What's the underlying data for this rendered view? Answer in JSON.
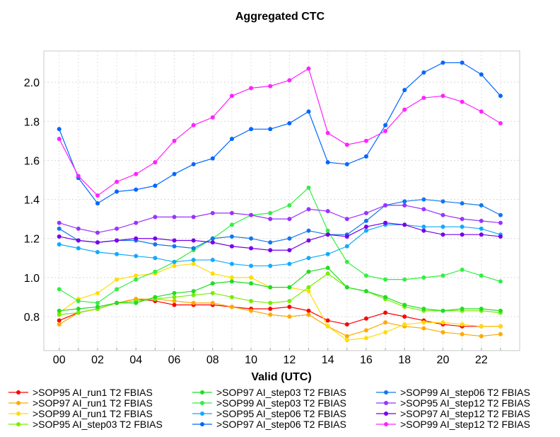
{
  "chart_data": {
    "type": "line",
    "title": "Aggregated CTC",
    "xlabel": "Valid (UTC)",
    "ylabel": "",
    "xlim": [
      -0.8,
      24
    ],
    "ylim": [
      0.626,
      2.16
    ],
    "grid": true,
    "legend_placement": "bottom-center",
    "x": [
      0,
      1,
      2,
      3,
      4,
      5,
      6,
      7,
      8,
      9,
      10,
      11,
      12,
      13,
      14,
      15,
      16,
      17,
      18,
      19,
      20,
      21,
      22,
      23
    ],
    "x_ticks": [
      0,
      2,
      4,
      6,
      8,
      10,
      12,
      14,
      16,
      18,
      20,
      22
    ],
    "x_tick_labels": [
      "00",
      "02",
      "04",
      "06",
      "08",
      "10",
      "12",
      "14",
      "16",
      "18",
      "20",
      "22"
    ],
    "y_ticks": [
      0.8,
      1.0,
      1.2,
      1.4,
      1.6,
      1.8,
      2.0
    ],
    "y_tick_labels": [
      "0.8",
      "1.0",
      "1.2",
      "1.4",
      "1.6",
      "1.8",
      "2.0"
    ],
    "series": [
      {
        "name": ">SOP95 AI_run1 T2 FBIAS",
        "color": "#ff0000",
        "values": [
          0.78,
          0.82,
          0.84,
          0.87,
          0.89,
          0.88,
          0.86,
          0.86,
          0.86,
          0.85,
          0.84,
          0.84,
          0.85,
          0.83,
          0.78,
          0.76,
          0.79,
          0.82,
          0.8,
          0.78,
          0.76,
          0.75,
          0.75,
          0.75
        ]
      },
      {
        "name": ">SOP97 AI_run1 T2 FBIAS",
        "color": "#ffaa00",
        "values": [
          0.76,
          0.82,
          0.84,
          0.87,
          0.89,
          0.89,
          0.88,
          0.87,
          0.87,
          0.85,
          0.83,
          0.81,
          0.8,
          0.81,
          0.75,
          0.7,
          0.73,
          0.77,
          0.75,
          0.74,
          0.72,
          0.71,
          0.7,
          0.71
        ]
      },
      {
        "name": ">SOP99 AI_run1 T2 FBIAS",
        "color": "#ffdd00",
        "values": [
          0.82,
          0.89,
          0.92,
          0.99,
          1.01,
          1.02,
          1.06,
          1.07,
          1.02,
          1.0,
          1.0,
          0.95,
          0.95,
          0.93,
          0.75,
          0.68,
          0.69,
          0.72,
          0.76,
          0.77,
          0.77,
          0.76,
          0.75,
          0.75
        ]
      },
      {
        "name": ">SOP95 AI_step03 T2 FBIAS",
        "color": "#77ee00",
        "values": [
          0.81,
          0.82,
          0.84,
          0.87,
          0.88,
          0.89,
          0.9,
          0.91,
          0.92,
          0.9,
          0.88,
          0.87,
          0.88,
          0.95,
          1.02,
          0.95,
          0.93,
          0.89,
          0.85,
          0.83,
          0.83,
          0.83,
          0.83,
          0.82
        ]
      },
      {
        "name": ">SOP97 AI_step03 T2 FBIAS",
        "color": "#22dd22",
        "values": [
          0.83,
          0.84,
          0.85,
          0.87,
          0.87,
          0.9,
          0.92,
          0.93,
          0.97,
          0.98,
          0.97,
          0.95,
          0.95,
          1.03,
          1.05,
          0.95,
          0.93,
          0.9,
          0.86,
          0.84,
          0.83,
          0.84,
          0.84,
          0.83
        ]
      },
      {
        "name": ">SOP99 AI_step03 T2 FBIAS",
        "color": "#33ee44",
        "values": [
          0.94,
          0.88,
          0.87,
          0.94,
          0.99,
          1.03,
          1.08,
          1.14,
          1.2,
          1.27,
          1.32,
          1.33,
          1.37,
          1.46,
          1.24,
          1.08,
          1.01,
          0.99,
          0.99,
          1.0,
          1.01,
          1.04,
          1.01,
          0.98
        ]
      },
      {
        "name": ">SOP95 AI_step06 T2 FBIAS",
        "color": "#11aaff",
        "values": [
          1.17,
          1.15,
          1.13,
          1.12,
          1.11,
          1.1,
          1.08,
          1.09,
          1.09,
          1.07,
          1.06,
          1.06,
          1.07,
          1.1,
          1.12,
          1.16,
          1.24,
          1.27,
          1.27,
          1.26,
          1.26,
          1.26,
          1.25,
          1.22
        ]
      },
      {
        "name": ">SOP97 AI_step06 T2 FBIAS",
        "color": "#0066ff",
        "values": [
          1.76,
          1.51,
          1.38,
          1.44,
          1.45,
          1.47,
          1.53,
          1.58,
          1.61,
          1.71,
          1.76,
          1.76,
          1.79,
          1.85,
          1.59,
          1.58,
          1.62,
          1.78,
          1.96,
          2.05,
          2.1,
          2.1,
          2.04,
          1.93
        ]
      },
      {
        "name": ">SOP99 AI_step06 T2 FBIAS",
        "color": "#1177ee",
        "values": [
          1.25,
          1.19,
          1.18,
          1.19,
          1.19,
          1.17,
          1.16,
          1.15,
          1.2,
          1.21,
          1.2,
          1.18,
          1.2,
          1.24,
          1.22,
          1.22,
          1.29,
          1.37,
          1.39,
          1.4,
          1.39,
          1.38,
          1.37,
          1.32
        ]
      },
      {
        "name": ">SOP95 AI_step12 T2 FBIAS",
        "color": "#9933ff",
        "values": [
          1.28,
          1.25,
          1.23,
          1.25,
          1.28,
          1.31,
          1.31,
          1.31,
          1.33,
          1.33,
          1.32,
          1.3,
          1.3,
          1.35,
          1.34,
          1.3,
          1.33,
          1.37,
          1.37,
          1.35,
          1.32,
          1.3,
          1.29,
          1.28
        ]
      },
      {
        "name": ">SOP97 AI_step12 T2 FBIAS",
        "color": "#7700ee",
        "values": [
          1.21,
          1.19,
          1.18,
          1.19,
          1.2,
          1.2,
          1.19,
          1.19,
          1.18,
          1.16,
          1.15,
          1.14,
          1.14,
          1.19,
          1.22,
          1.21,
          1.26,
          1.28,
          1.27,
          1.24,
          1.22,
          1.22,
          1.22,
          1.21
        ]
      },
      {
        "name": ">SOP99 AI_step12 T2 FBIAS",
        "color": "#ff22ff",
        "values": [
          1.71,
          1.52,
          1.42,
          1.49,
          1.53,
          1.59,
          1.7,
          1.78,
          1.82,
          1.93,
          1.97,
          1.98,
          2.01,
          2.07,
          1.74,
          1.68,
          1.7,
          1.75,
          1.86,
          1.92,
          1.93,
          1.9,
          1.85,
          1.79
        ]
      }
    ]
  }
}
